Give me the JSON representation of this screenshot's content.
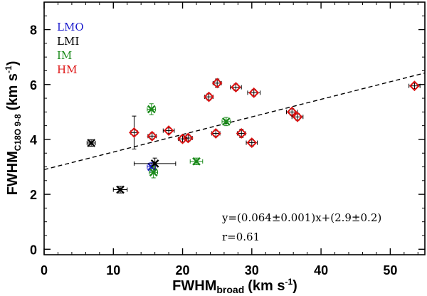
{
  "chart_data": {
    "type": "scatter",
    "xlabel": "FWHM",
    "xlabel_sub": "broad",
    "xlabel_units_pre": "(km s",
    "xlabel_units_sup": "-1",
    "xlabel_units_post": ")",
    "ylabel": "FWHM",
    "ylabel_sub": "C18O 9-8",
    "ylabel_units_pre": "(km s",
    "ylabel_units_sup": "-1",
    "ylabel_units_post": ")",
    "xlim": [
      0,
      55
    ],
    "ylim": [
      -0.2,
      9
    ],
    "xticks": [
      0,
      10,
      20,
      30,
      40,
      50
    ],
    "yticks": [
      0,
      2,
      4,
      6,
      8
    ],
    "legend": [
      {
        "name": "LMO",
        "color": "#1a1acc"
      },
      {
        "name": "LMI",
        "color": "#000000"
      },
      {
        "name": "IM",
        "color": "#1a8a1a"
      },
      {
        "name": "HM",
        "color": "#dd1111"
      }
    ],
    "fit": {
      "slope": 0.064,
      "intercept": 2.9,
      "x_range": [
        0,
        55
      ],
      "style": "dashed"
    },
    "annotations": {
      "equation": "y=(0.064±0.001)x+(2.9±0.2)",
      "r": "r=0.61"
    },
    "series": [
      {
        "name": "LMO",
        "marker": "x",
        "color": "#1a1acc",
        "points": [
          {
            "x": 15.5,
            "y": 3.0,
            "xerr": 0.6,
            "yerr": 0.15
          }
        ]
      },
      {
        "name": "LMI",
        "marker": "x",
        "color": "#000000",
        "points": [
          {
            "x": 6.8,
            "y": 3.87,
            "xerr": 0.6,
            "yerr": 0.12
          },
          {
            "x": 11.0,
            "y": 2.17,
            "xerr": 1.0,
            "yerr": 0.12
          },
          {
            "x": 16.0,
            "y": 3.12,
            "xerr": 3.0,
            "yerr": 0.2
          }
        ]
      },
      {
        "name": "IM",
        "marker": "x",
        "color": "#1a8a1a",
        "points": [
          {
            "x": 15.5,
            "y": 5.1,
            "xerr": 0.6,
            "yerr": 0.2
          },
          {
            "x": 15.8,
            "y": 2.8,
            "xerr": 0.6,
            "yerr": 0.2
          },
          {
            "x": 22.0,
            "y": 3.2,
            "xerr": 0.9,
            "yerr": 0.12
          },
          {
            "x": 26.3,
            "y": 4.65,
            "xerr": 0.6,
            "yerr": 0.15
          }
        ]
      },
      {
        "name": "HM",
        "marker": "diamond",
        "color": "#dd1111",
        "points": [
          {
            "x": 13.0,
            "y": 4.25,
            "xerr": 0.5,
            "yerr": 0.6
          },
          {
            "x": 15.6,
            "y": 4.12,
            "xerr": 0.6,
            "yerr": 0.12
          },
          {
            "x": 18.0,
            "y": 4.32,
            "xerr": 0.8,
            "yerr": 0.1
          },
          {
            "x": 20.0,
            "y": 4.02,
            "xerr": 0.6,
            "yerr": 0.12
          },
          {
            "x": 20.8,
            "y": 4.05,
            "xerr": 0.6,
            "yerr": 0.12
          },
          {
            "x": 23.8,
            "y": 5.55,
            "xerr": 0.6,
            "yerr": 0.12
          },
          {
            "x": 24.8,
            "y": 4.22,
            "xerr": 0.6,
            "yerr": 0.12
          },
          {
            "x": 25.0,
            "y": 6.05,
            "xerr": 0.6,
            "yerr": 0.15
          },
          {
            "x": 27.7,
            "y": 5.9,
            "xerr": 0.8,
            "yerr": 0.12
          },
          {
            "x": 28.5,
            "y": 4.22,
            "xerr": 0.6,
            "yerr": 0.15
          },
          {
            "x": 30.0,
            "y": 3.88,
            "xerr": 0.8,
            "yerr": 0.12
          },
          {
            "x": 30.3,
            "y": 5.7,
            "xerr": 0.9,
            "yerr": 0.12
          },
          {
            "x": 35.8,
            "y": 5.0,
            "xerr": 0.8,
            "yerr": 0.12
          },
          {
            "x": 36.6,
            "y": 4.82,
            "xerr": 0.8,
            "yerr": 0.12
          },
          {
            "x": 53.5,
            "y": 5.95,
            "xerr": 0.8,
            "yerr": 0.1
          }
        ]
      }
    ]
  }
}
